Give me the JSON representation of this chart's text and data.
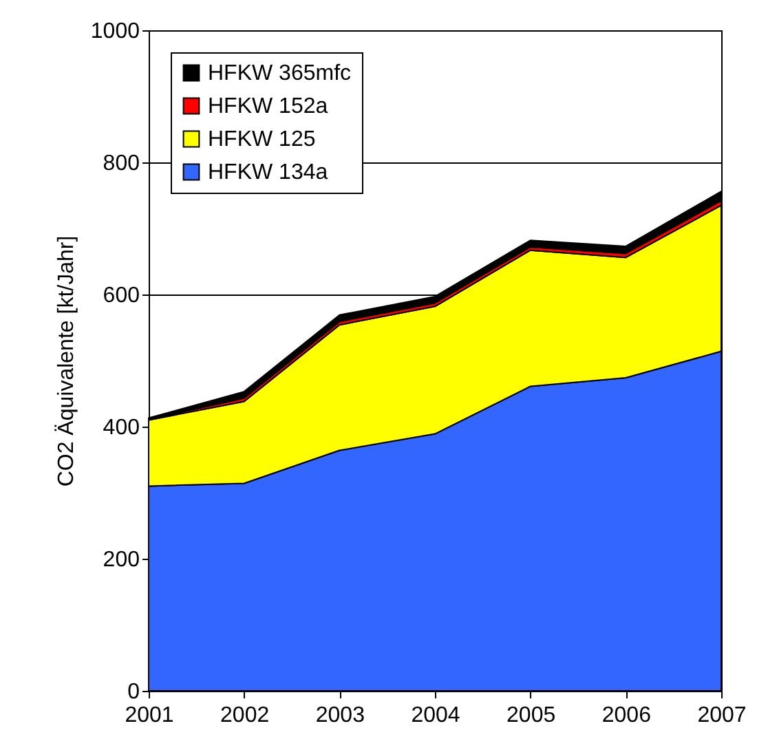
{
  "chart_data": {
    "type": "area",
    "stacked": true,
    "ylabel": "CO2 Äquivalente [kt/Jahr]",
    "categories": [
      "2001",
      "2002",
      "2003",
      "2004",
      "2005",
      "2006",
      "2007"
    ],
    "series": [
      {
        "name": "HFKW 134a",
        "color": "#3366ff",
        "values": [
          310,
          314,
          364,
          389,
          461,
          474,
          514
        ]
      },
      {
        "name": "HFKW 125",
        "color": "#ffff00",
        "values": [
          100,
          124,
          190,
          193,
          206,
          182,
          221
        ]
      },
      {
        "name": "HFKW 152a",
        "color": "#ff0000",
        "values": [
          1,
          5,
          5,
          5,
          5,
          6,
          7
        ]
      },
      {
        "name": "HFKW 365mfc",
        "color": "#000000",
        "values": [
          2,
          10,
          10,
          10,
          10,
          11,
          14
        ]
      }
    ],
    "ylim": [
      0,
      1000
    ],
    "yticks": [
      0,
      200,
      400,
      600,
      800,
      1000
    ],
    "grid": "y",
    "legend": "top left"
  }
}
